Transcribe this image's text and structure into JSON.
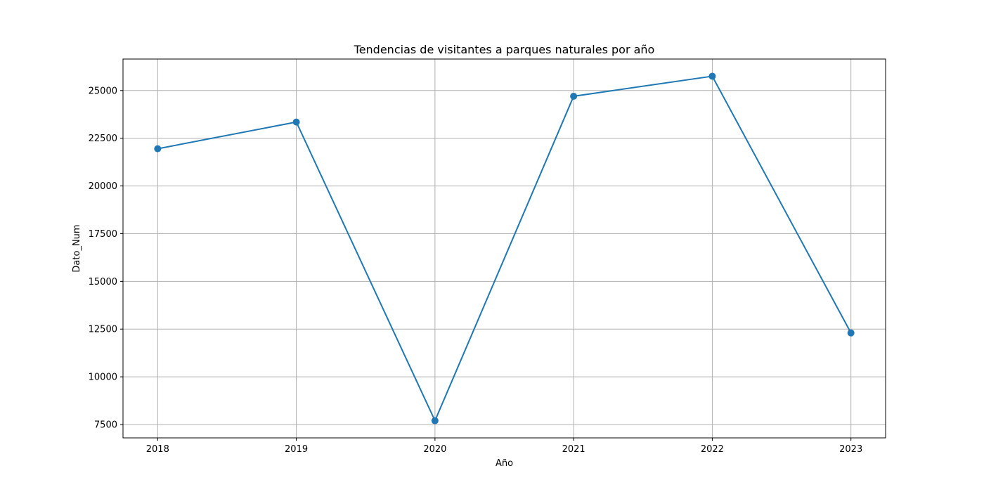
{
  "chart_data": {
    "type": "line",
    "title": "Tendencias de visitantes a parques naturales por año",
    "xlabel": "Año",
    "ylabel": "Dato_Num",
    "x": [
      2018,
      2019,
      2020,
      2021,
      2022,
      2023
    ],
    "series": [
      {
        "values": [
          21950,
          23350,
          7700,
          24700,
          25750,
          12300
        ],
        "color": "#1f77b4",
        "marker": "circle"
      }
    ],
    "xlim": [
      2017.75,
      2023.25
    ],
    "ylim": [
      6800,
      26650
    ],
    "xticks": [
      2018,
      2019,
      2020,
      2021,
      2022,
      2023
    ],
    "yticks": [
      7500,
      10000,
      12500,
      15000,
      17500,
      20000,
      22500,
      25000
    ],
    "grid": true,
    "legend": "none"
  }
}
